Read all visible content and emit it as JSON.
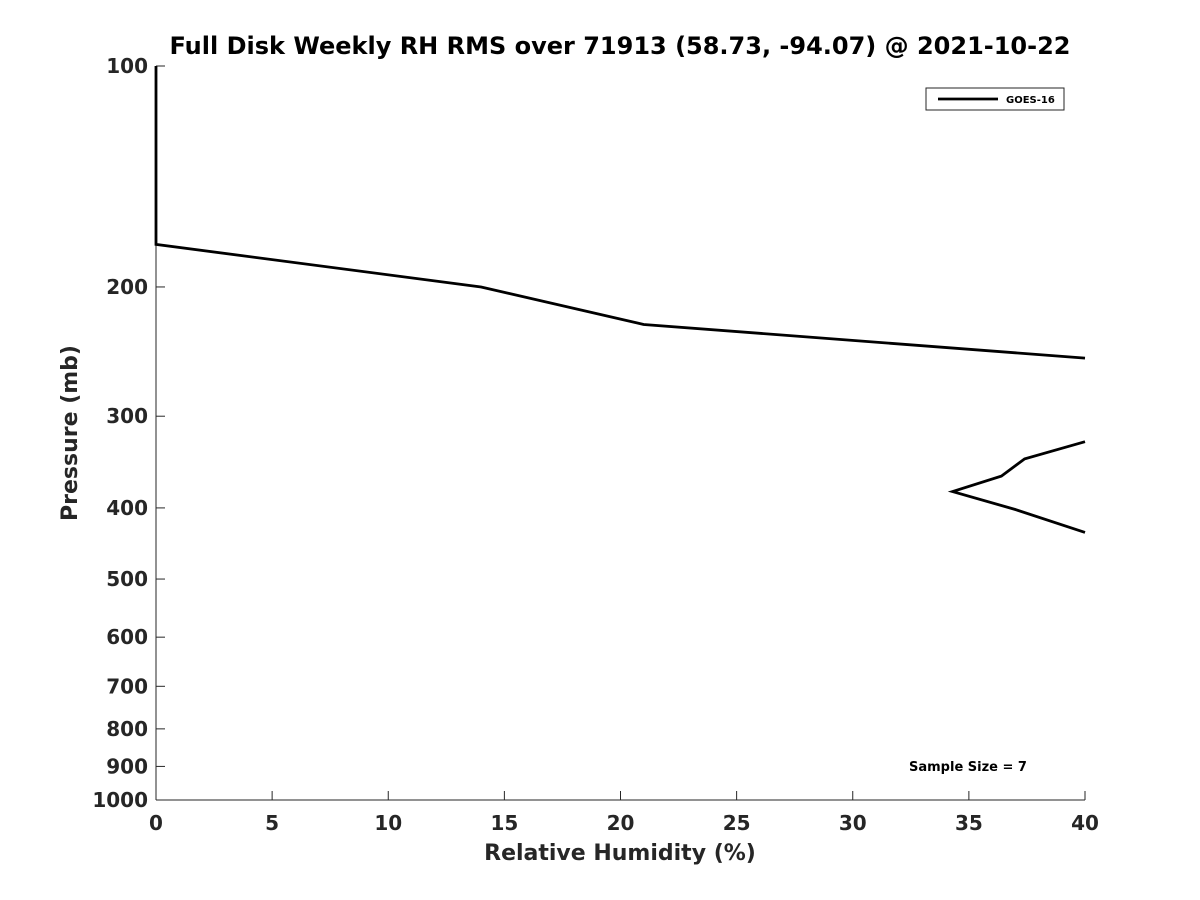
{
  "chart_data": {
    "type": "line",
    "title": "Full Disk Weekly RH RMS over 71913 (58.73, -94.07) @ 2021-10-22",
    "xlabel": "Relative Humidity (%)",
    "ylabel": "Pressure (mb)",
    "xlim": [
      0,
      40
    ],
    "ylim": [
      100,
      1000
    ],
    "y_scale": "log",
    "y_reversed": true,
    "x_ticks": [
      0,
      5,
      10,
      15,
      20,
      25,
      30,
      35,
      40
    ],
    "x_tick_labels": [
      "0",
      "5",
      "10",
      "15",
      "20",
      "25",
      "30",
      "35",
      "40"
    ],
    "y_ticks": [
      100,
      200,
      300,
      400,
      500,
      600,
      700,
      800,
      900,
      1000
    ],
    "y_tick_labels": [
      "100",
      "200",
      "300",
      "400",
      "500",
      "600",
      "700",
      "800",
      "900",
      "1000"
    ],
    "grid": false,
    "legend_position": "top-right",
    "series": [
      {
        "name": "GOES-16",
        "color": "#000000",
        "segments": [
          {
            "x": [
              0,
              0,
              0,
              14,
              21,
              40
            ],
            "y": [
              100,
              150,
              175,
              200,
              225,
              250
            ]
          },
          {
            "x": [
              40,
              37.4,
              36.4,
              34.3,
              37,
              40
            ],
            "y": [
              325,
              343,
              362,
              380,
              402,
              432
            ]
          }
        ]
      }
    ],
    "annotations": [
      {
        "text": "Sample Size = 7",
        "position": "bottom-right"
      }
    ]
  }
}
